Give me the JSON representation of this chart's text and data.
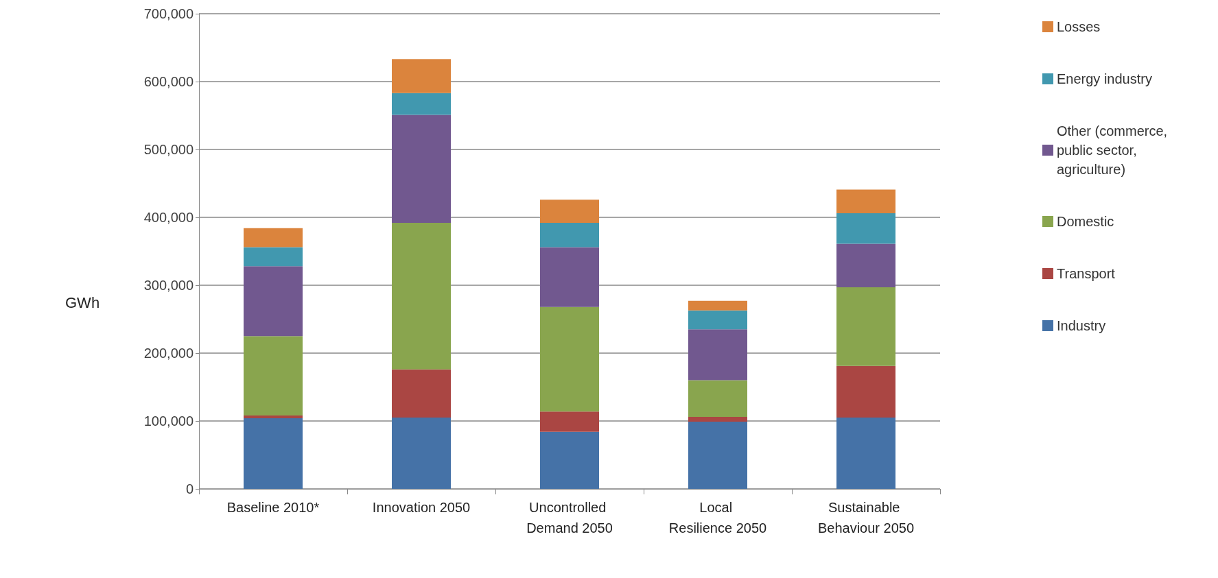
{
  "chart_data": {
    "type": "bar",
    "stacked": true,
    "ylabel": "GWh",
    "categories": [
      "Baseline 2010*",
      "Innovation 2050",
      "Uncontrolled Demand 2050",
      "Local Resilience 2050",
      "Sustainable Behaviour 2050"
    ],
    "series": [
      {
        "name": "Industry",
        "color": "#4572a7",
        "values": [
          104000,
          105000,
          84000,
          99000,
          105000
        ]
      },
      {
        "name": "Transport",
        "color": "#aa4643",
        "values": [
          4000,
          71000,
          30000,
          7000,
          76000
        ]
      },
      {
        "name": "Domestic",
        "color": "#89a54e",
        "values": [
          117000,
          216000,
          154000,
          54000,
          116000
        ]
      },
      {
        "name": "Other (commerce, public sector, agriculture)",
        "color": "#71588f",
        "values": [
          103000,
          159000,
          88000,
          75000,
          64000
        ]
      },
      {
        "name": "Energy industry",
        "color": "#4198af",
        "values": [
          28000,
          32000,
          36000,
          28000,
          45000
        ]
      },
      {
        "name": "Losses",
        "color": "#db843d",
        "values": [
          28000,
          50000,
          34000,
          14000,
          35000
        ]
      }
    ],
    "ylim": [
      0,
      700000
    ],
    "yticks": [
      0,
      {
        "value": 100000,
        "label": "100,000"
      },
      {
        "value": 200000,
        "label": "200,000"
      },
      {
        "value": 300000,
        "label": "300,000"
      },
      {
        "value": 400000,
        "label": "400,000"
      },
      {
        "value": 500000,
        "label": "500,000"
      },
      {
        "value": 600000,
        "label": "600,000"
      },
      {
        "value": 700000,
        "label": "700,000"
      }
    ],
    "grid": "y",
    "legend": "right"
  }
}
